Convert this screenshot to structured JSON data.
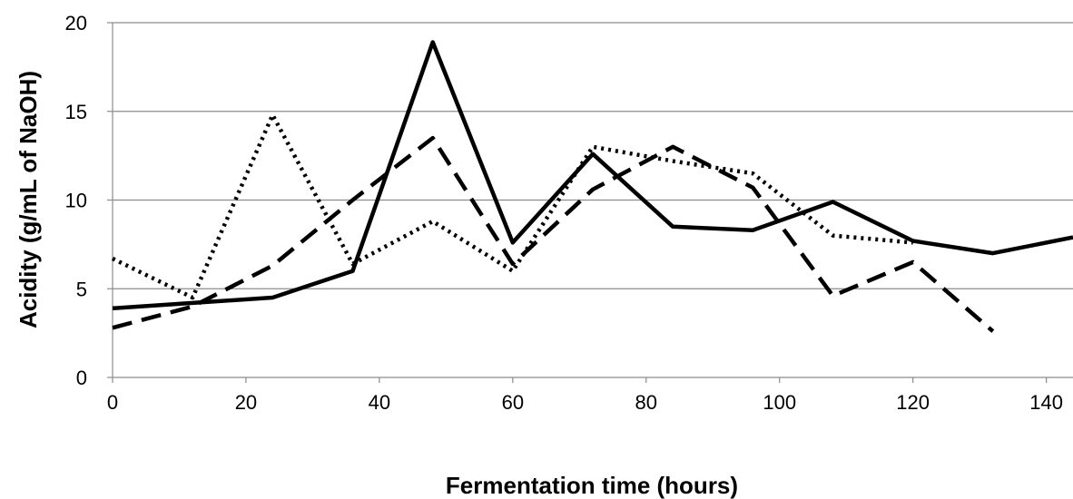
{
  "chart_data": {
    "type": "line",
    "title": "",
    "xlabel": "Fermentation time (hours)",
    "ylabel": "Acidity  (g/mL of NaOH)",
    "xlim": [
      0,
      144
    ],
    "ylim": [
      0,
      20
    ],
    "x_ticks": [
      0,
      20,
      40,
      60,
      80,
      100,
      120,
      140
    ],
    "y_ticks": [
      0,
      5,
      10,
      15,
      20
    ],
    "grid": "horizontal",
    "legend": "none",
    "series": [
      {
        "style": "solid",
        "color": "#000000",
        "points": [
          [
            0,
            3.9
          ],
          [
            12,
            4.2
          ],
          [
            24,
            4.5
          ],
          [
            36,
            6.0
          ],
          [
            48,
            18.9
          ],
          [
            60,
            7.6
          ],
          [
            72,
            12.6
          ],
          [
            84,
            8.5
          ],
          [
            96,
            8.3
          ],
          [
            108,
            9.9
          ],
          [
            120,
            7.7
          ],
          [
            132,
            7.0
          ],
          [
            144,
            7.9
          ]
        ]
      },
      {
        "style": "dashed",
        "color": "#000000",
        "points": [
          [
            0,
            2.8
          ],
          [
            12,
            4.0
          ],
          [
            24,
            6.3
          ],
          [
            36,
            10.0
          ],
          [
            48,
            13.5
          ],
          [
            60,
            6.4
          ],
          [
            72,
            10.6
          ],
          [
            84,
            13.0
          ],
          [
            96,
            10.7
          ],
          [
            108,
            4.6
          ],
          [
            120,
            6.5
          ],
          [
            132,
            2.6
          ]
        ]
      },
      {
        "style": "dotted",
        "color": "#000000",
        "points": [
          [
            0,
            6.7
          ],
          [
            12,
            4.5
          ],
          [
            24,
            14.8
          ],
          [
            36,
            6.4
          ],
          [
            48,
            8.8
          ],
          [
            60,
            6.0
          ],
          [
            72,
            13.0
          ],
          [
            84,
            12.2
          ],
          [
            96,
            11.5
          ],
          [
            108,
            8.0
          ],
          [
            120,
            7.6
          ]
        ]
      }
    ]
  }
}
